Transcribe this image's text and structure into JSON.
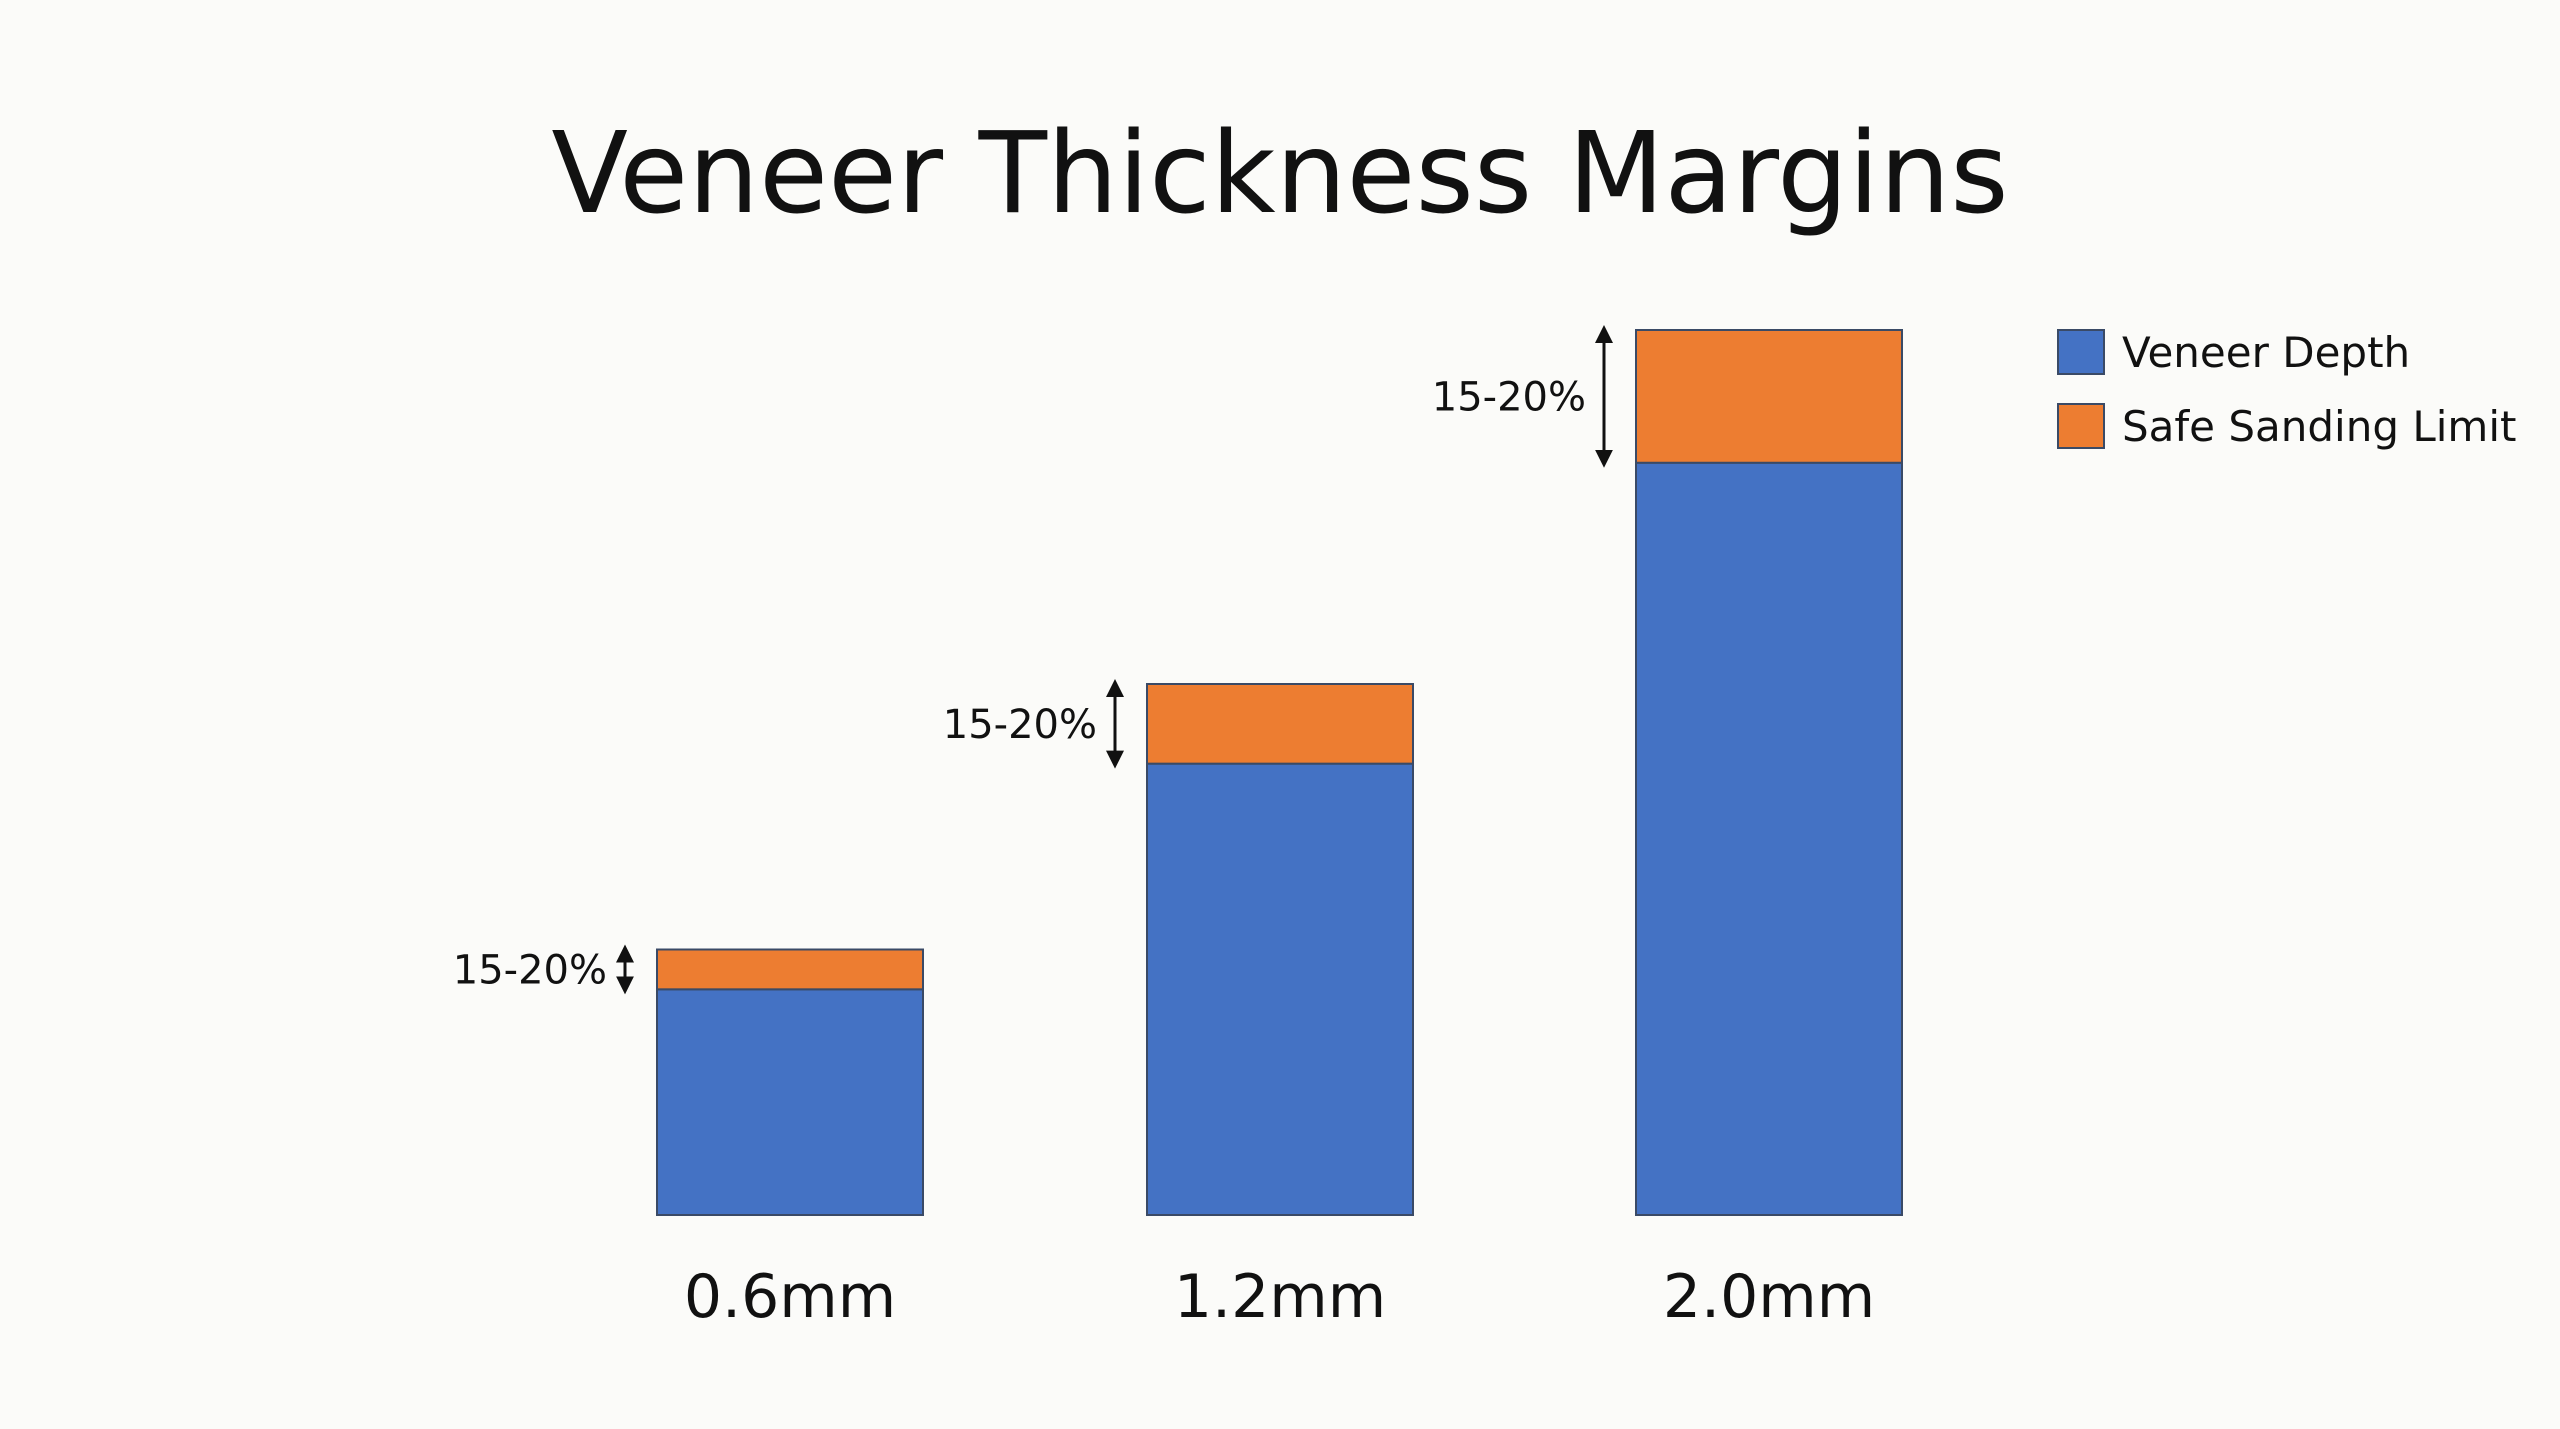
{
  "chart_data": {
    "type": "bar",
    "stacked": true,
    "title": "Veneer Thickness Margins",
    "xlabel": "",
    "ylabel": "",
    "categories": [
      "0.6mm",
      "1.2mm",
      "2.0mm"
    ],
    "series": [
      {
        "name": "Veneer Depth",
        "color": "#4472c4",
        "values": [
          0.51,
          1.02,
          1.7
        ]
      },
      {
        "name": "Safe Sanding Limit",
        "color": "#ed7d31",
        "values": [
          0.09,
          0.18,
          0.3
        ]
      }
    ],
    "annotations": [
      "15-20%",
      "15-20%",
      "15-20%"
    ],
    "ylim": [
      0,
      2.0
    ],
    "grid": false,
    "axes_visible": false,
    "legend_position": "top-right"
  }
}
